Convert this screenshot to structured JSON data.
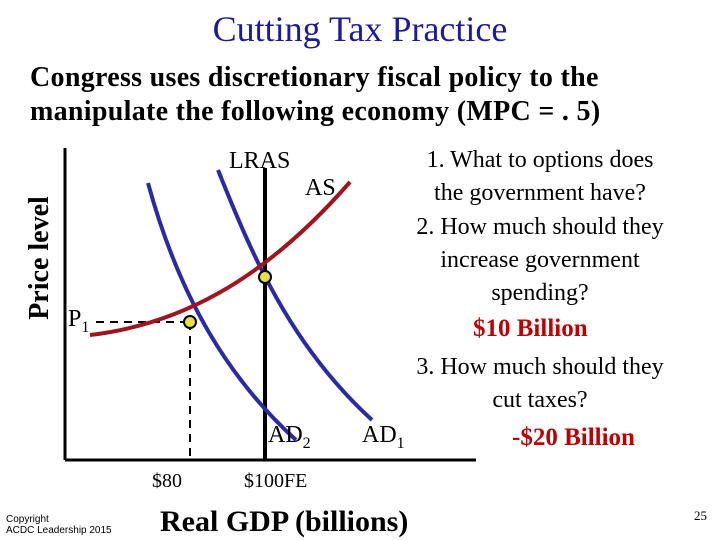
{
  "slide": {
    "title": "Cutting Tax Practice",
    "subtitle_line1": "Congress uses discretionary fiscal policy to the",
    "subtitle_line2": "manipulate the following economy (MPC = . 5)",
    "page_number": "25",
    "copyright_line1": "Copyright",
    "copyright_line2": "ACDC Leadership 2015"
  },
  "diagram": {
    "y_axis_label": "Price level",
    "x_axis_label": "Real GDP (billions)",
    "price_label": "P",
    "price_subscript": "1",
    "curves": {
      "lras": "LRAS",
      "as": "AS",
      "ad2_base": "AD",
      "ad2_sub": "2",
      "ad1_base": "AD",
      "ad1_sub": "1"
    },
    "gdp_marks": {
      "current": "$80",
      "full_employment": "$100FE"
    },
    "colors": {
      "title": "#1a1aa6",
      "ad_curves": "#2a2aa8",
      "as_curve": "#a0141e",
      "answers": "#c00000",
      "points": "#e8e040"
    }
  },
  "questions": {
    "q1_line1": "1. What to options does",
    "q1_line2": "the government have?",
    "q2_line1": "2. How much should they",
    "q2_line2": "increase government",
    "q2_line3": "spending?",
    "a2": "$10 Billion",
    "q3_line1": "3. How much should they",
    "q3_line2": "cut taxes?",
    "a3": "-$20 Billion"
  }
}
